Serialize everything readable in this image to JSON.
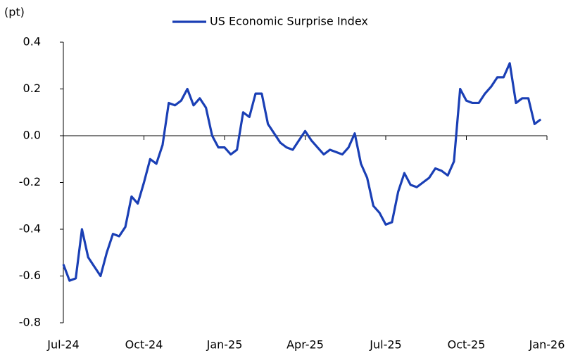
{
  "chart_data": {
    "type": "line",
    "y_label": "(pt)",
    "series": [
      {
        "name": "US Economic Surprise Index",
        "color": "#1a3fb5",
        "values": [
          -0.55,
          -0.62,
          -0.61,
          -0.4,
          -0.52,
          -0.56,
          -0.6,
          -0.5,
          -0.42,
          -0.43,
          -0.39,
          -0.26,
          -0.29,
          -0.2,
          -0.1,
          -0.12,
          -0.04,
          0.14,
          0.13,
          0.15,
          0.2,
          0.13,
          0.16,
          0.12,
          0.0,
          -0.05,
          -0.05,
          -0.08,
          -0.06,
          0.1,
          0.08,
          0.18,
          0.18,
          0.05,
          0.01,
          -0.03,
          -0.05,
          -0.06,
          -0.02,
          0.02,
          -0.02,
          -0.05,
          -0.08,
          -0.06,
          -0.07,
          -0.08,
          -0.05,
          0.01,
          -0.12,
          -0.18,
          -0.3,
          -0.33,
          -0.38,
          -0.37,
          -0.24,
          -0.16,
          -0.21,
          -0.22,
          -0.2,
          -0.18,
          -0.14,
          -0.15,
          -0.17,
          -0.11,
          0.2,
          0.15,
          0.14,
          0.14,
          0.18,
          0.21,
          0.25,
          0.25,
          0.31,
          0.14,
          0.16,
          0.16,
          0.05,
          0.07,
          null
        ]
      }
    ],
    "categories": [
      "Jul-24",
      null,
      null,
      null,
      null,
      null,
      null,
      null,
      null,
      null,
      null,
      null,
      null,
      "Oct-24",
      null,
      null,
      null,
      null,
      null,
      null,
      null,
      null,
      null,
      null,
      null,
      null,
      "Jan-25",
      null,
      null,
      null,
      null,
      null,
      null,
      null,
      null,
      null,
      null,
      null,
      null,
      "Apr-25",
      null,
      null,
      null,
      null,
      null,
      null,
      null,
      null,
      null,
      null,
      null,
      null,
      "Jul-25",
      null,
      null,
      null,
      null,
      null,
      null,
      null,
      null,
      null,
      null,
      null,
      null,
      "Oct-25",
      null,
      null,
      null,
      null,
      null,
      null,
      null,
      null,
      null,
      null,
      null,
      null,
      "Jan-26"
    ],
    "ylim": [
      -0.8,
      0.4
    ],
    "yticks": [
      0.4,
      0.2,
      {
        "value": 0,
        "label": "0.0"
      },
      -0.2,
      -0.4,
      -0.6,
      -0.8
    ],
    "legend": "top"
  }
}
